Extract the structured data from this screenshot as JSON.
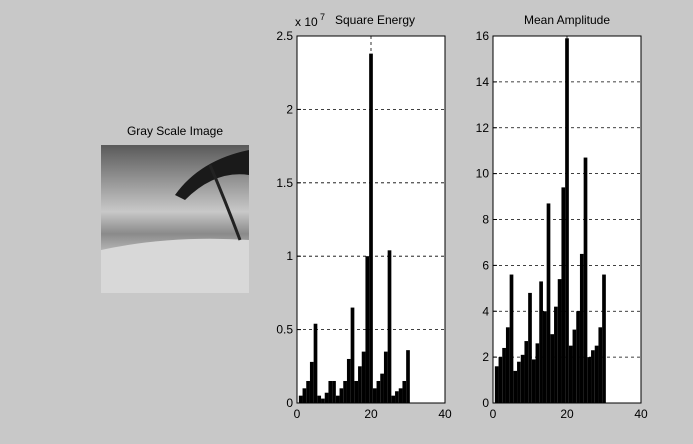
{
  "image": {
    "title": "Gray Scale Image"
  },
  "chart_data": [
    {
      "type": "bar",
      "title": "Square Energy",
      "scale_label": "x 10",
      "scale_exponent": "7",
      "x": [
        1,
        2,
        3,
        4,
        5,
        6,
        7,
        8,
        9,
        10,
        11,
        12,
        13,
        14,
        15,
        16,
        17,
        18,
        19,
        20,
        21,
        22,
        23,
        24,
        25,
        26,
        27,
        28,
        29,
        30
      ],
      "values": [
        0.05,
        0.1,
        0.15,
        0.28,
        0.54,
        0.05,
        0.03,
        0.07,
        0.15,
        0.15,
        0.05,
        0.1,
        0.15,
        0.3,
        0.65,
        0.15,
        0.25,
        0.35,
        1.0,
        2.38,
        0.1,
        0.15,
        0.2,
        0.35,
        1.04,
        0.05,
        0.08,
        0.1,
        0.15,
        0.36
      ],
      "color": "#000000",
      "xlim": [
        0,
        40
      ],
      "xticks": [
        0,
        20,
        40
      ],
      "ylim": [
        0,
        2.5
      ],
      "yticks": [
        0,
        0.5,
        1,
        1.5,
        2,
        2.5
      ],
      "grid": true
    },
    {
      "type": "bar",
      "title": "Mean Amplitude",
      "x": [
        1,
        2,
        3,
        4,
        5,
        6,
        7,
        8,
        9,
        10,
        11,
        12,
        13,
        14,
        15,
        16,
        17,
        18,
        19,
        20,
        21,
        22,
        23,
        24,
        25,
        26,
        27,
        28,
        29,
        30
      ],
      "values": [
        1.6,
        2,
        2.4,
        3.3,
        5.6,
        1.4,
        1.8,
        2.1,
        2.7,
        4.8,
        1.9,
        2.6,
        5.3,
        4,
        8.7,
        3,
        4.2,
        5.4,
        9.4,
        15.9,
        2.5,
        3.2,
        4,
        6.5,
        10.7,
        2,
        2.3,
        2.5,
        3.3,
        5.6
      ],
      "color": "#000000",
      "xlim": [
        0,
        40
      ],
      "xticks": [
        0,
        20,
        40
      ],
      "ylim": [
        0,
        16
      ],
      "yticks": [
        0,
        2,
        4,
        6,
        8,
        10,
        12,
        14,
        16
      ],
      "grid": true
    }
  ]
}
